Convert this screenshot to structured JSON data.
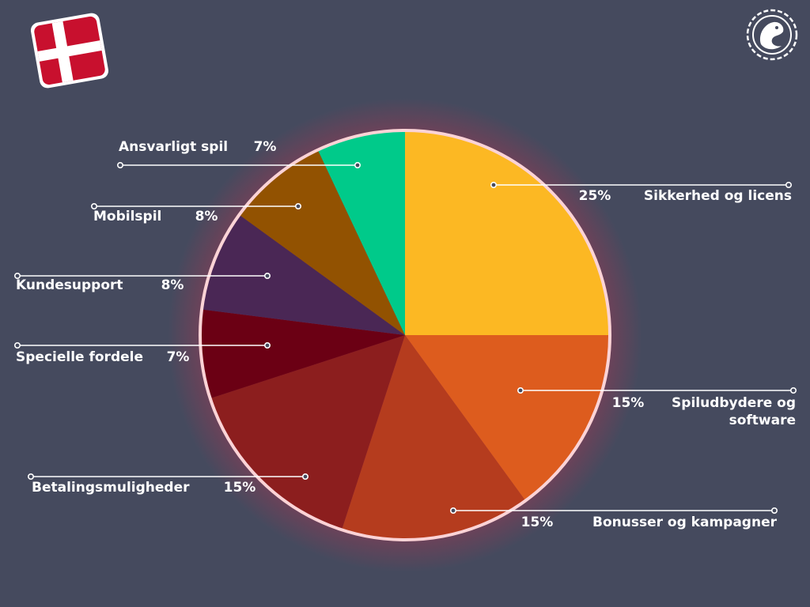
{
  "colors": {
    "background": "#454a5e",
    "pie_border": "#fbd3d6",
    "leader_line": "#ffffff",
    "flag_red": "#c8102e",
    "flag_white": "#ffffff"
  },
  "icons": {
    "flag": "denmark-flag-icon",
    "logo": "dragon-logo-icon"
  },
  "chart_data": {
    "type": "pie",
    "title": "",
    "start_angle_deg": 0,
    "direction": "clockwise",
    "slices": [
      {
        "label": "Sikkerhed og licens",
        "value": 25,
        "value_label": "25%",
        "color": "#fcb823"
      },
      {
        "label": "Spiludbydere og software",
        "value": 15,
        "value_label": "15%",
        "color": "#dd5c1e"
      },
      {
        "label": "Bonusser og kampagner",
        "value": 15,
        "value_label": "15%",
        "color": "#b53c1e"
      },
      {
        "label": "Betalingsmuligheder",
        "value": 15,
        "value_label": "15%",
        "color": "#8c1e1e"
      },
      {
        "label": "Specielle fordele",
        "value": 7,
        "value_label": "7%",
        "color": "#6b0014"
      },
      {
        "label": "Kundesupport",
        "value": 8,
        "value_label": "8%",
        "color": "#4a2755"
      },
      {
        "label": "Mobilspil",
        "value": 8,
        "value_label": "8%",
        "color": "#925201"
      },
      {
        "label": "Ansvarligt spil",
        "value": 7,
        "value_label": "7%",
        "color": "#00ca8a"
      }
    ]
  }
}
